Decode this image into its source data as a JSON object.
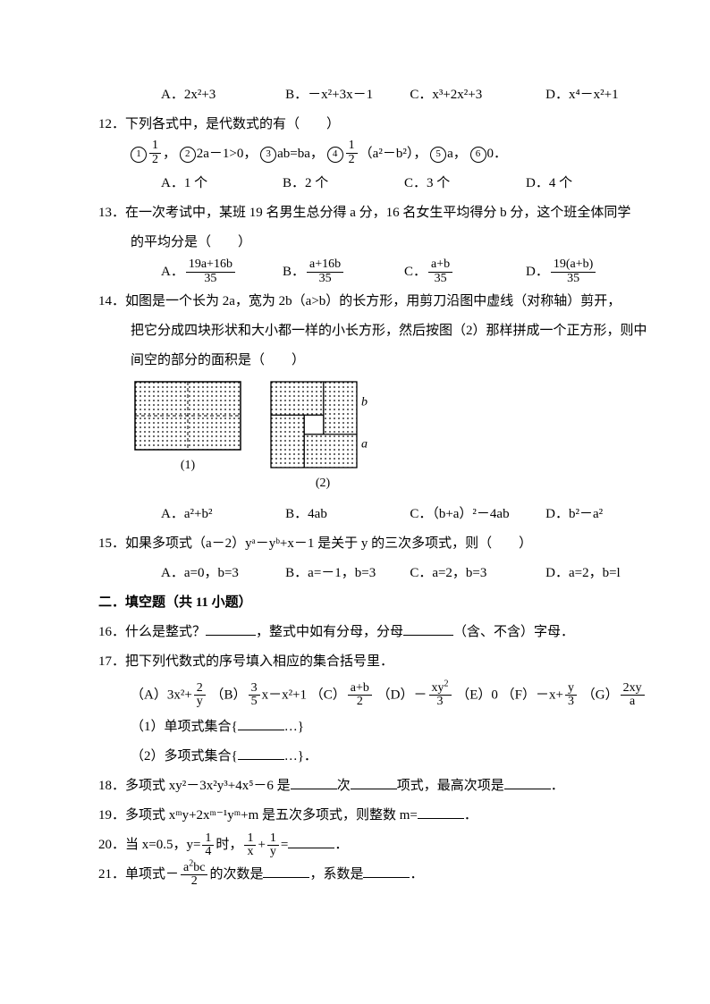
{
  "q11": {
    "A": "A．2x²+3",
    "B": "B．－x²+3x－1",
    "C": "C．x³+2x²+3",
    "D": "D．x⁴－x²+1"
  },
  "q12": {
    "stem": "12．下列各式中，是代数式的有（　　）",
    "items_pre": "，",
    "i1": "1",
    "f1n": "1",
    "f1d": "2",
    "i2": "2",
    "t2": "2a－1>0，",
    "i3": "3",
    "t3": "ab=ba，",
    "i4": "4",
    "f4n": "1",
    "f4d": "2",
    "t4post": "（a²－b²），",
    "i5": "5",
    "t5": "a，",
    "i6": "6",
    "t6": "0．",
    "A": "A．1 个",
    "B": "B．2 个",
    "C": "C．3 个",
    "D": "D．4 个"
  },
  "q13": {
    "stem1": "13．在一次考试中，某班 19 名男生总分得 a 分，16 名女生平均得分 b 分，这个班全体同学",
    "stem2": "的平均分是（　　）",
    "A_pre": "A．",
    "A_n": "19a+16b",
    "A_d": "35",
    "B_pre": "B．",
    "B_n": "a+16b",
    "B_d": "35",
    "C_pre": "C．",
    "C_n": "a+b",
    "C_d": "35",
    "D_pre": "D．",
    "D_n": "19(a+b)",
    "D_d": "35"
  },
  "q14": {
    "stem1": "14．如图是一个长为 2a，宽为 2b（a>b）的长方形，用剪刀沿图中虚线（对称轴）剪开，",
    "stem2": "把它分成四块形状和大小都一样的小长方形，然后按图（2）那样拼成一个正方形，则中",
    "stem3": "间空的部分的面积是（　　）",
    "cap1": "(1)",
    "cap2": "(2)",
    "lab_a": "a",
    "lab_b": "b",
    "A": "A．a²+b²",
    "B": "B．4ab",
    "C": "C．（b+a）²－4ab",
    "D": "D．b²－a²"
  },
  "q15": {
    "stem": "15．如果多项式（a－2）yᵃ－yᵇ+x－1 是关于 y 的三次多项式，则（　　）",
    "A": "A．a=0，b=3",
    "B": "B．a=－1，b=3",
    "C": "C．a=2，b=3",
    "D": "D．a=2，b=l"
  },
  "section2": "二．填空题（共 11 小题）",
  "q16": {
    "t1": "16．什么是整式？",
    "t2": "，整式中如有分母，分母",
    "t3": "（含、不含）字母．"
  },
  "q17": {
    "stem": "17．把下列代数式的序号填入相应的集合括号里．",
    "A_pre": "（A）3x²+",
    "A_n": "2",
    "A_d": "y",
    "B_pre": "（B）",
    "B_n": "3",
    "B_d": "5",
    "B_post": "x－x²+1",
    "C_pre": "（C）",
    "C_n": "a+b",
    "C_d": "2",
    "D_pre": "（D）－",
    "D_n": "xy²",
    "D_d": "3",
    "D_nraw": "xy",
    "D_nexp": "2",
    "E": "（E）0",
    "F_pre": "（F）－x+",
    "F_n": "y",
    "F_d": "3",
    "G_pre": "（G）",
    "G_n": "2xy",
    "G_d": "a",
    "s1a": "（1）单项式集合{",
    "s1b": "…}",
    "s2a": "（2）多项式集合{",
    "s2b": "…}．"
  },
  "q18": {
    "t1": "18．多项式 xy²－3x²y³+4x⁵－6 是",
    "t2": "次",
    "t3": "项式，最高次项是",
    "t4": "．"
  },
  "q19": {
    "t1": "19．多项式 xᵐy+2xᵐ⁻¹yᵐ+m 是五次多项式，则整数 m=",
    "t2": "．"
  },
  "q20": {
    "t1": "20．当 x=0.5，y=",
    "yn": "1",
    "yd": "4",
    "t2": "时，",
    "an": "1",
    "ad": "x",
    "plus": "+",
    "bn": "1",
    "bd": "y",
    "eq": "=",
    "t3": "．"
  },
  "q21": {
    "t1": "21．单项式－",
    "n": "a²bc",
    "nraw": "a",
    "nexp": "2",
    "npost": "bc",
    "d": "2",
    "t2": "的次数是",
    "t3": "，系数是",
    "t4": "．"
  },
  "fig": {
    "pattern_color": "#000000",
    "bg": "#ffffff",
    "rect1_w": 120,
    "rect1_h": 78,
    "rect2_w": 98,
    "rect2_h": 98,
    "inner_a": 60,
    "inner_b": 38
  }
}
